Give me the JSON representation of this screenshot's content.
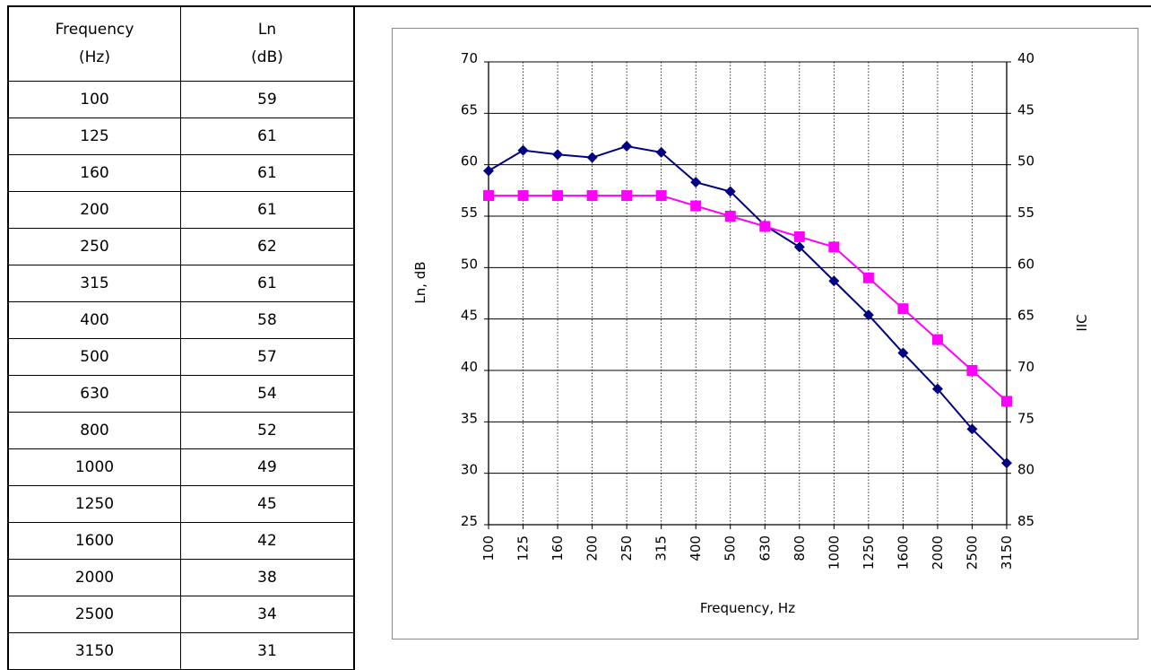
{
  "table": {
    "header_frequency_line1": "Frequency",
    "header_frequency_line2": "(Hz)",
    "header_ln_line1": "Ln",
    "header_ln_line2": "(dB)",
    "rows": [
      [
        "100",
        "59"
      ],
      [
        "125",
        "61"
      ],
      [
        "160",
        "61"
      ],
      [
        "200",
        "61"
      ],
      [
        "250",
        "62"
      ],
      [
        "315",
        "61"
      ],
      [
        "400",
        "58"
      ],
      [
        "500",
        "57"
      ],
      [
        "630",
        "54"
      ],
      [
        "800",
        "52"
      ],
      [
        "1000",
        "49"
      ],
      [
        "1250",
        "45"
      ],
      [
        "1600",
        "42"
      ],
      [
        "2000",
        "38"
      ],
      [
        "2500",
        "34"
      ],
      [
        "3150",
        "31"
      ]
    ]
  },
  "chart_data": {
    "type": "line",
    "xlabel": "Frequency, Hz",
    "ylabel": "Ln, dB",
    "y2label": "IIC",
    "categories": [
      "100",
      "125",
      "160",
      "200",
      "250",
      "315",
      "400",
      "500",
      "630",
      "800",
      "1000",
      "1250",
      "1600",
      "2000",
      "2500",
      "3150"
    ],
    "ylim": [
      25,
      70
    ],
    "y_ticks": [
      "25",
      "30",
      "35",
      "40",
      "45",
      "50",
      "55",
      "60",
      "65",
      "70"
    ],
    "y2lim": [
      85,
      40
    ],
    "y2_ticks": [
      "85",
      "80",
      "75",
      "70",
      "65",
      "60",
      "55",
      "50",
      "45",
      "40"
    ],
    "grid": true,
    "legend": "none",
    "series": [
      {
        "color": "#000080",
        "marker": "diamond",
        "values": [
          59.4,
          61.4,
          61.0,
          60.7,
          61.8,
          61.2,
          58.3,
          57.4,
          54.1,
          52.0,
          48.7,
          45.4,
          41.7,
          38.2,
          34.3,
          31.0
        ]
      },
      {
        "color": "#FF00FF",
        "marker": "square",
        "values": [
          57,
          57,
          57,
          57,
          57,
          57,
          56,
          55,
          54,
          53,
          52,
          49,
          46,
          43,
          40,
          37
        ]
      }
    ]
  }
}
